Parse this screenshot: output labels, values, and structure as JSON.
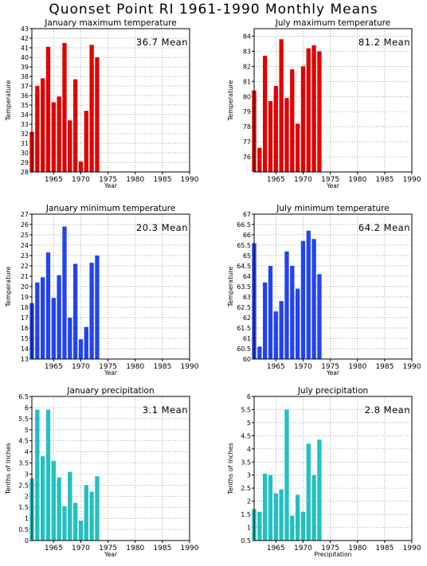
{
  "title": "Quonset Point RI   1961-1990 Monthly Means",
  "colors": {
    "max": "#e00000",
    "min": "#2244ee",
    "precip": "#22c0c0",
    "grid": "#888888"
  },
  "chart_data": [
    {
      "type": "bar",
      "title": "January maximum temperature",
      "mean_label": "36.7 Mean",
      "xlabel": "Year",
      "ylabel": "Temperature",
      "color_key": "max",
      "xlim": [
        1961,
        1990
      ],
      "ylim": [
        28,
        43
      ],
      "yticks": [
        "28",
        "29",
        "30",
        "31",
        "32",
        "33",
        "34",
        "35",
        "36",
        "37",
        "38",
        "39",
        "40",
        "41",
        "42",
        "43"
      ],
      "xticks": [
        "1965",
        "1970",
        "1975",
        "1980",
        "1985",
        "1990"
      ],
      "x": [
        1961,
        1962,
        1963,
        1964,
        1965,
        1966,
        1967,
        1968,
        1969,
        1970,
        1971,
        1972,
        1973
      ],
      "values": [
        32.2,
        37.0,
        37.8,
        41.1,
        35.3,
        35.9,
        41.5,
        33.4,
        37.7,
        29.1,
        34.4,
        41.3,
        40.0
      ]
    },
    {
      "type": "bar",
      "title": "July maximum temperature",
      "mean_label": "81.2 Mean",
      "xlabel": "Year",
      "ylabel": "Temperature",
      "color_key": "max",
      "xlim": [
        1961,
        1990
      ],
      "ylim": [
        75,
        84.5
      ],
      "yticks": [
        "76",
        "77",
        "78",
        "79",
        "80",
        "81",
        "82",
        "83",
        "84"
      ],
      "xticks": [
        "1965",
        "1970",
        "1975",
        "1980",
        "1985",
        "1990"
      ],
      "x": [
        1961,
        1962,
        1963,
        1964,
        1965,
        1966,
        1967,
        1968,
        1969,
        1970,
        1971,
        1972,
        1973
      ],
      "values": [
        80.4,
        76.6,
        82.7,
        79.7,
        80.7,
        83.8,
        79.9,
        81.8,
        78.2,
        82.0,
        83.2,
        83.4,
        83.0
      ]
    },
    {
      "type": "bar",
      "title": "January minimum temperature",
      "mean_label": "20.3 Mean",
      "xlabel": "Year",
      "ylabel": "Temperature",
      "color_key": "min",
      "xlim": [
        1961,
        1990
      ],
      "ylim": [
        13,
        27
      ],
      "yticks": [
        "13",
        "14",
        "15",
        "16",
        "17",
        "18",
        "19",
        "20",
        "21",
        "22",
        "23",
        "24",
        "25",
        "26",
        "27"
      ],
      "xticks": [
        "1965",
        "1970",
        "1975",
        "1980",
        "1985",
        "1990"
      ],
      "x": [
        1961,
        1962,
        1963,
        1964,
        1965,
        1966,
        1967,
        1968,
        1969,
        1970,
        1971,
        1972,
        1973
      ],
      "values": [
        18.4,
        20.4,
        20.9,
        23.3,
        18.9,
        21.1,
        25.8,
        17.0,
        22.2,
        14.9,
        16.1,
        22.3,
        23.0
      ]
    },
    {
      "type": "bar",
      "title": "July minimum temperature",
      "mean_label": "64.2 Mean",
      "xlabel": "Year",
      "ylabel": "Temperature",
      "color_key": "min",
      "xlim": [
        1961,
        1990
      ],
      "ylim": [
        60,
        67
      ],
      "yticks": [
        "60",
        "60.5",
        "61",
        "61.5",
        "62",
        "62.5",
        "63",
        "63.5",
        "64",
        "64.5",
        "65",
        "65.5",
        "66",
        "66.5",
        "67"
      ],
      "xticks": [
        "1965",
        "1970",
        "1975",
        "1980",
        "1985",
        "1990"
      ],
      "x": [
        1961,
        1962,
        1963,
        1964,
        1965,
        1966,
        1967,
        1968,
        1969,
        1970,
        1971,
        1972,
        1973
      ],
      "values": [
        65.6,
        60.6,
        63.7,
        64.5,
        62.3,
        62.8,
        65.2,
        64.5,
        63.4,
        65.7,
        66.2,
        65.8,
        64.1
      ]
    },
    {
      "type": "bar",
      "title": "January precipitation",
      "mean_label": "3.1 Mean",
      "xlabel": "Year",
      "ylabel": "Tenths of Inches",
      "color_key": "precip",
      "xlim": [
        1961,
        1990
      ],
      "ylim": [
        0,
        6.5
      ],
      "yticks": [
        "0",
        "0.5",
        "1",
        "1.5",
        "2",
        "2.5",
        "3",
        "3.5",
        "4",
        "4.5",
        "5",
        "5.5",
        "6",
        "6.5"
      ],
      "xticks": [
        "1965",
        "1970",
        "1975",
        "1980",
        "1985",
        "1990"
      ],
      "x": [
        1961,
        1962,
        1963,
        1964,
        1965,
        1966,
        1967,
        1968,
        1969,
        1970,
        1971,
        1972,
        1973
      ],
      "values": [
        2.8,
        5.9,
        3.8,
        5.9,
        3.6,
        2.85,
        1.55,
        3.1,
        1.7,
        0.9,
        2.5,
        2.2,
        2.9
      ]
    },
    {
      "type": "bar",
      "title": "July precipitation",
      "mean_label": "2.8 Mean",
      "xlabel": "Precipitation",
      "ylabel": "Tenths of Inches",
      "color_key": "precip",
      "xlim": [
        1961,
        1990
      ],
      "ylim": [
        0.5,
        6
      ],
      "yticks": [
        "0.5",
        "1",
        "1.5",
        "2",
        "2.5",
        "3",
        "3.5",
        "4",
        "4.5",
        "5",
        "5.5",
        "6"
      ],
      "xticks": [
        "1965",
        "1970",
        "1975",
        "1980",
        "1985",
        "1990"
      ],
      "x": [
        1961,
        1962,
        1963,
        1964,
        1965,
        1966,
        1967,
        1968,
        1969,
        1970,
        1971,
        1972,
        1973
      ],
      "values": [
        1.7,
        1.6,
        3.05,
        3.0,
        2.3,
        2.45,
        5.5,
        1.45,
        2.25,
        1.6,
        4.2,
        3.0,
        4.35
      ]
    }
  ]
}
